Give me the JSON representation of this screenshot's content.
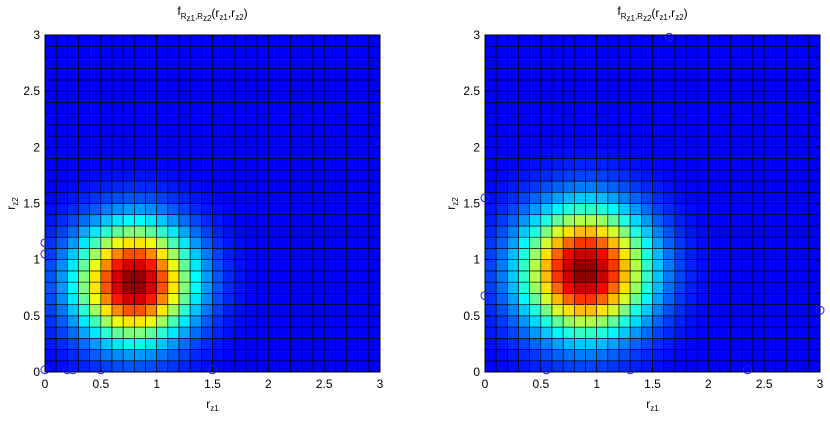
{
  "chart_data": [
    {
      "type": "heatmap",
      "title": "f",
      "title_sub": "R",
      "title_sub2": "z1",
      "title_sep": ",R",
      "title_sub3": "z2",
      "title_args": "(r",
      "title_a1": "z1",
      "title_comma": ",r",
      "title_a2": "z2",
      "title_close": ")",
      "xlabel": "r",
      "xlabel_sub": "z1",
      "ylabel": "r",
      "ylabel_sub": "z2",
      "xlim": [
        0,
        3
      ],
      "ylim": [
        0,
        3
      ],
      "xticks": [
        "0",
        "0.5",
        "1",
        "1.5",
        "2",
        "2.5",
        "3"
      ],
      "yticks": [
        "0",
        "0.5",
        "1",
        "1.5",
        "2",
        "2.5",
        "3"
      ],
      "grid_cells": 30,
      "peak": [
        0.8,
        0.8
      ],
      "spread": [
        0.35,
        0.35
      ],
      "colormap": "jet",
      "markers_x": [
        [
          0,
          0.02
        ],
        [
          0.2,
          0.02
        ],
        [
          0.25,
          0.02
        ],
        [
          0.5,
          0.02
        ],
        [
          1.5,
          0.02
        ],
        [
          0,
          1.15
        ],
        [
          0,
          1.05
        ]
      ]
    },
    {
      "type": "heatmap",
      "title": "f",
      "title_sub": "R",
      "title_sub2": "z1",
      "title_sep": ",R",
      "title_sub3": "z2",
      "title_args": "(r",
      "title_a1": "z1",
      "title_comma": ",r",
      "title_a2": "z2",
      "title_close": ")",
      "xlabel": "r",
      "xlabel_sub": "z1",
      "ylabel": "r",
      "ylabel_sub": "z2",
      "xlim": [
        0,
        3
      ],
      "ylim": [
        0,
        3
      ],
      "xticks": [
        "0",
        "0.5",
        "1",
        "1.5",
        "2",
        "2.5",
        "3"
      ],
      "yticks": [
        "0",
        "0.5",
        "1",
        "1.5",
        "2",
        "2.5",
        "3"
      ],
      "grid_cells": 30,
      "peak": [
        0.9,
        0.9
      ],
      "spread": [
        0.38,
        0.38
      ],
      "colormap": "jet",
      "markers_x": [
        [
          0.55,
          0.02
        ],
        [
          1.3,
          0.02
        ],
        [
          1.65,
          2.98
        ],
        [
          0,
          1.55
        ],
        [
          0,
          0.68
        ],
        [
          3,
          0.55
        ],
        [
          2.35,
          0.02
        ]
      ]
    }
  ],
  "colors": {
    "background": "#ffffff",
    "grid_line": "#000000"
  }
}
